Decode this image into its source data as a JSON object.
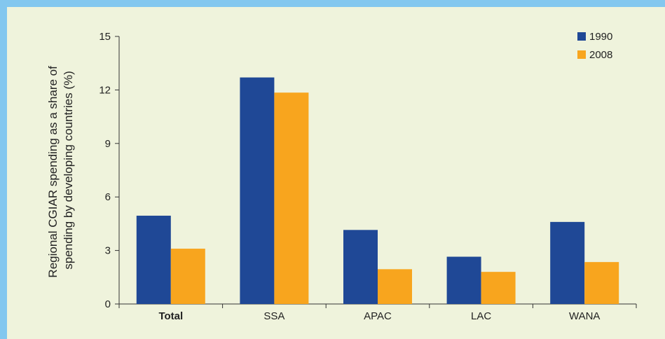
{
  "chart_data": {
    "type": "bar",
    "title": "",
    "xlabel": "",
    "ylabel_lines": [
      "Regional CGIAR spending  as a share of",
      "spending by developing countries (%)"
    ],
    "categories": [
      "Total",
      "SSA",
      "APAC",
      "LAC",
      "WANA"
    ],
    "bold_categories": [
      "Total"
    ],
    "series": [
      {
        "name": "1990",
        "color": "#1f4896",
        "values": [
          4.95,
          12.7,
          4.15,
          2.65,
          4.6
        ]
      },
      {
        "name": "2008",
        "color": "#f8a51e",
        "values": [
          3.1,
          11.85,
          1.95,
          1.8,
          2.35
        ]
      }
    ],
    "ylim": [
      0,
      15
    ],
    "yticks": [
      "0",
      "3",
      "6",
      "9",
      "12",
      "15"
    ],
    "grid": false,
    "legend": "top-right"
  }
}
